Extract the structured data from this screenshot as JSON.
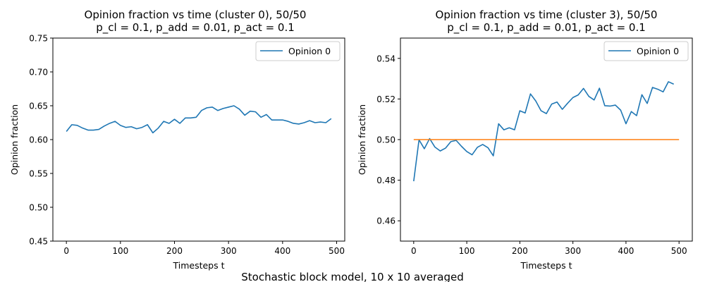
{
  "figure": {
    "suptitle": "Stochastic block model, 10 x 10 averaged"
  },
  "chart_data": [
    {
      "type": "line",
      "title_line1": "Opinion fraction vs time (cluster 0), 50/50",
      "title_line2": "p_cl = 0.1, p_add = 0.01, p_act = 0.1",
      "xlabel": "Timesteps t",
      "ylabel": "Opinion fraction",
      "xlim": [
        -25,
        515
      ],
      "ylim": [
        0.45,
        0.75
      ],
      "xticks": [
        0,
        100,
        200,
        300,
        400,
        500
      ],
      "xtick_labels": [
        "0",
        "100",
        "200",
        "300",
        "400",
        "500"
      ],
      "yticks": [
        0.45,
        0.5,
        0.55,
        0.6,
        0.65,
        0.7,
        0.75
      ],
      "ytick_labels": [
        "0.45",
        "0.50",
        "0.55",
        "0.60",
        "0.65",
        "0.70",
        "0.75"
      ],
      "grid": false,
      "legend_position": "top-right",
      "series": [
        {
          "name": "Opinion 0",
          "color": "#1f77b4",
          "x": [
            0,
            10,
            20,
            30,
            40,
            50,
            60,
            70,
            80,
            90,
            100,
            110,
            120,
            130,
            140,
            150,
            160,
            170,
            180,
            190,
            200,
            210,
            220,
            230,
            240,
            250,
            260,
            270,
            280,
            290,
            300,
            310,
            320,
            330,
            340,
            350,
            360,
            370,
            380,
            390,
            400,
            410,
            420,
            430,
            440,
            450,
            460,
            470,
            480,
            490
          ],
          "y": [
            0.612,
            0.622,
            0.621,
            0.617,
            0.614,
            0.614,
            0.615,
            0.62,
            0.624,
            0.627,
            0.621,
            0.618,
            0.619,
            0.616,
            0.618,
            0.622,
            0.61,
            0.617,
            0.627,
            0.624,
            0.63,
            0.624,
            0.632,
            0.632,
            0.633,
            0.643,
            0.647,
            0.648,
            0.643,
            0.646,
            0.648,
            0.65,
            0.645,
            0.636,
            0.642,
            0.641,
            0.633,
            0.637,
            0.629,
            0.629,
            0.629,
            0.627,
            0.624,
            0.623,
            0.625,
            0.628,
            0.625,
            0.626,
            0.625,
            0.631
          ]
        }
      ]
    },
    {
      "type": "line",
      "title_line1": "Opinion fraction vs time (cluster 3), 50/50",
      "title_line2": "p_cl = 0.1, p_add = 0.01, p_act = 0.1",
      "xlabel": "Timesteps t",
      "ylabel": "Opinion fraction",
      "xlim": [
        -25,
        525
      ],
      "ylim": [
        0.45,
        0.55
      ],
      "xticks": [
        0,
        100,
        200,
        300,
        400,
        500
      ],
      "xtick_labels": [
        "0",
        "100",
        "200",
        "300",
        "400",
        "500"
      ],
      "yticks": [
        0.46,
        0.48,
        0.5,
        0.52,
        0.54
      ],
      "ytick_labels": [
        "0.46",
        "0.48",
        "0.50",
        "0.52",
        "0.54"
      ],
      "grid": false,
      "legend_position": "top-right",
      "series": [
        {
          "name": "Opinion 0",
          "color": "#1f77b4",
          "x": [
            0,
            10,
            20,
            30,
            40,
            50,
            60,
            70,
            80,
            90,
            100,
            110,
            120,
            130,
            140,
            150,
            160,
            170,
            180,
            190,
            200,
            210,
            220,
            230,
            240,
            250,
            260,
            270,
            280,
            290,
            300,
            310,
            320,
            330,
            340,
            350,
            360,
            370,
            380,
            390,
            400,
            410,
            420,
            430,
            440,
            450,
            460,
            470,
            480,
            490
          ],
          "y": [
            0.4795,
            0.4999,
            0.4955,
            0.5005,
            0.4963,
            0.4944,
            0.4958,
            0.499,
            0.4996,
            0.4967,
            0.4941,
            0.4925,
            0.4962,
            0.4976,
            0.496,
            0.492,
            0.5078,
            0.5048,
            0.5058,
            0.5048,
            0.5142,
            0.5131,
            0.5225,
            0.519,
            0.5142,
            0.5128,
            0.5175,
            0.5185,
            0.5149,
            0.5179,
            0.5207,
            0.522,
            0.5252,
            0.5213,
            0.5195,
            0.5253,
            0.5167,
            0.5165,
            0.517,
            0.5145,
            0.5078,
            0.5138,
            0.5118,
            0.5221,
            0.5178,
            0.5257,
            0.5248,
            0.5235,
            0.5285,
            0.5273
          ]
        },
        {
          "color": "#ff7f0e",
          "x": [
            0,
            500
          ],
          "y": [
            0.5,
            0.5
          ]
        }
      ]
    }
  ]
}
